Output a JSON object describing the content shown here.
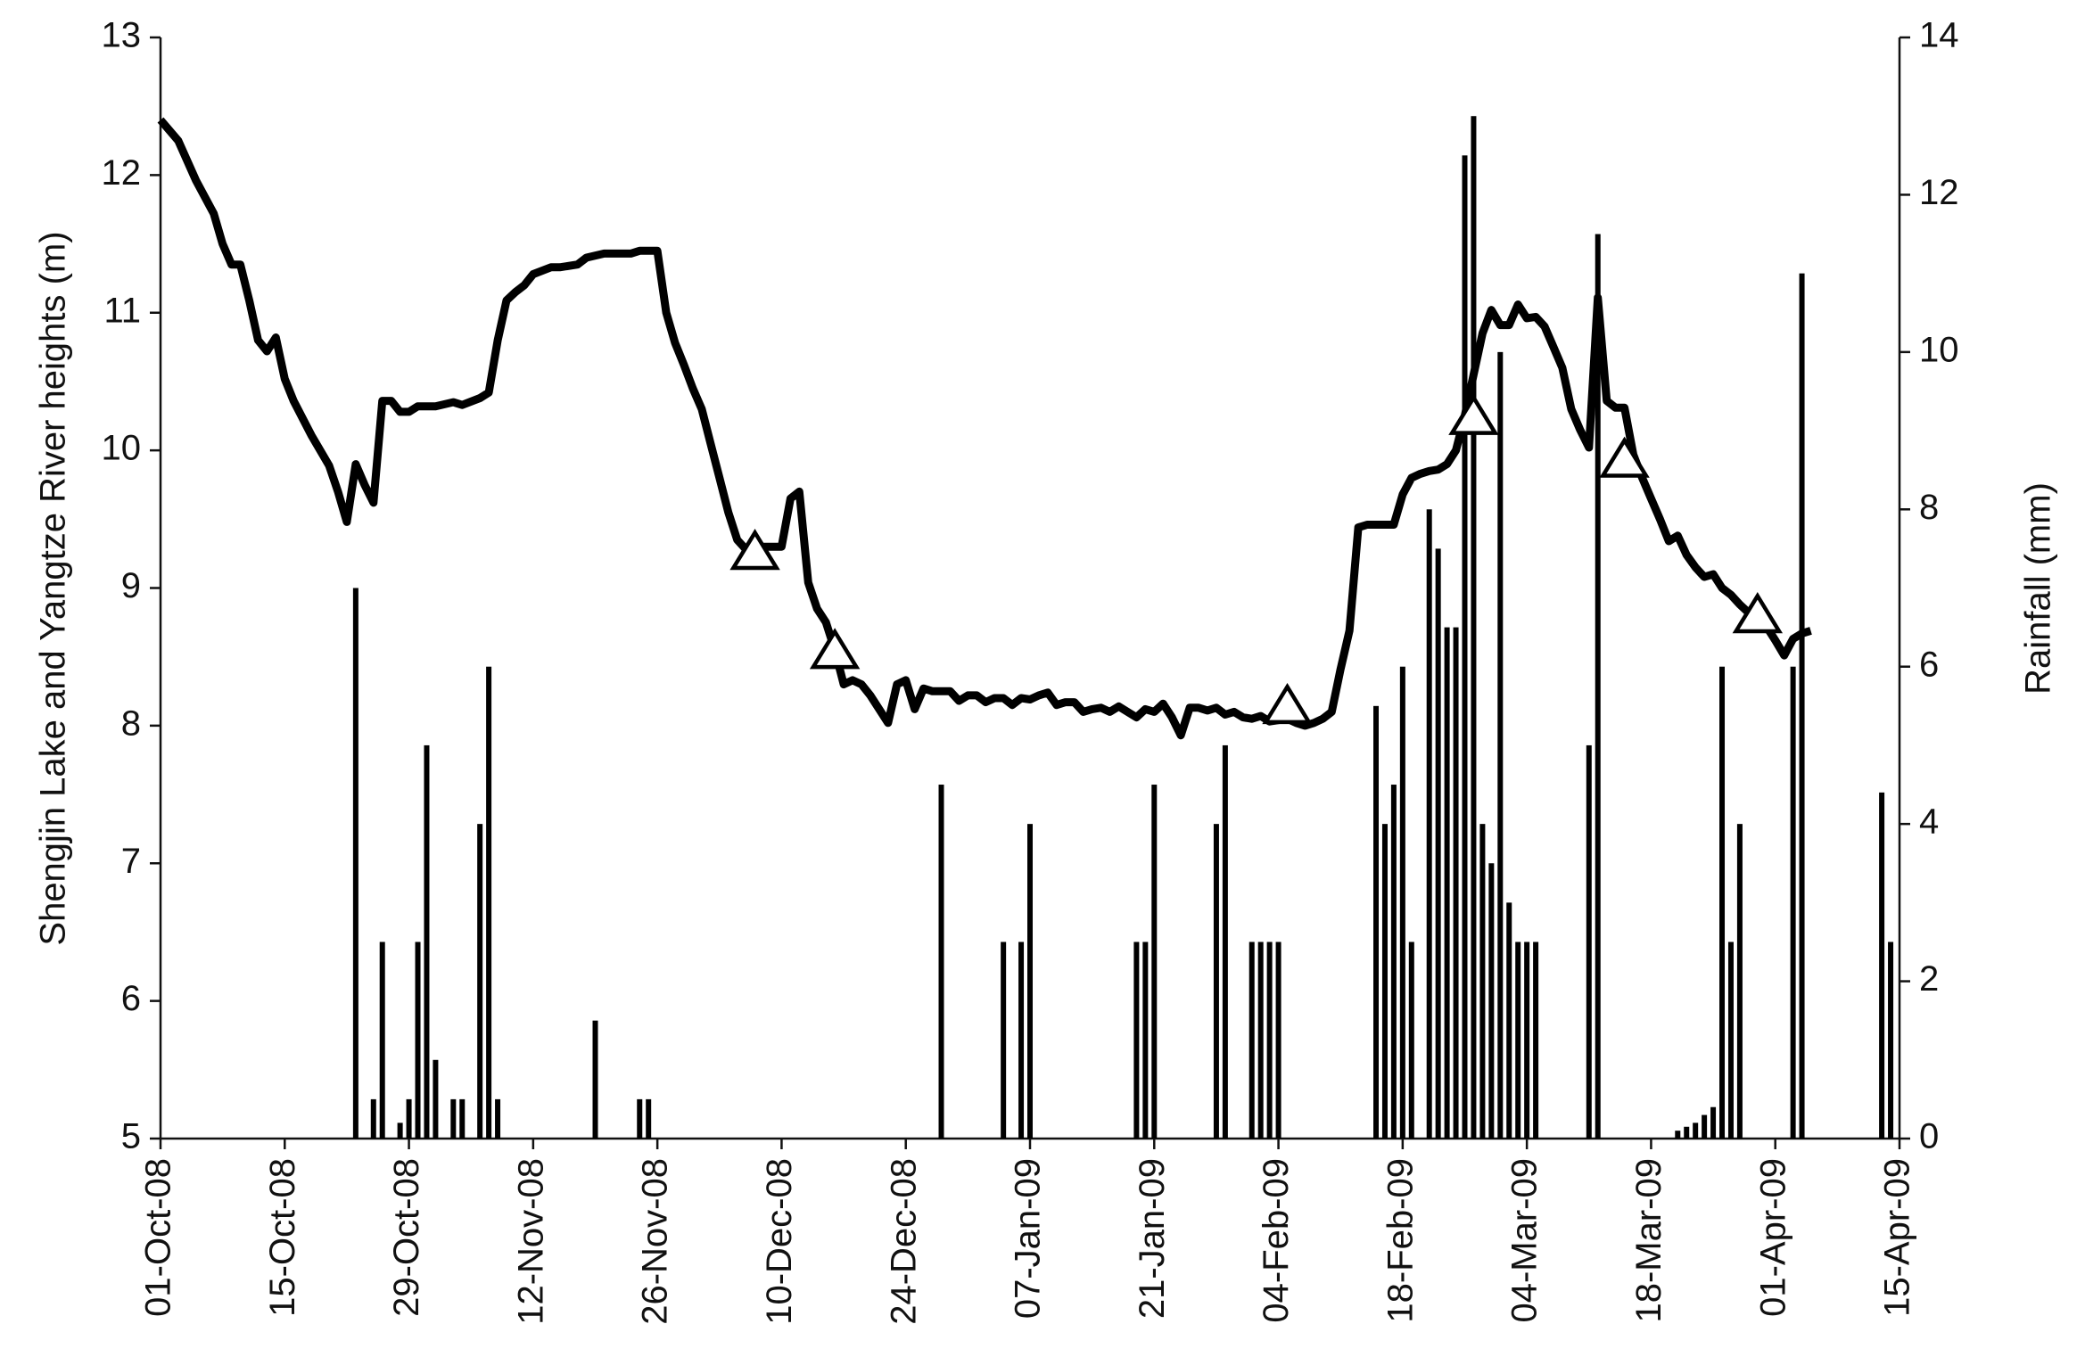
{
  "chart_data": {
    "type": "line",
    "ylabel": "Shengjin Lake and Yangtze River heights (m)",
    "y2label": "Rainfall (mm)",
    "xlim": [
      "01-Oct-08",
      "15-Apr-09"
    ],
    "xticks": [
      "01-Oct-08",
      "15-Oct-08",
      "29-Oct-08",
      "12-Nov-08",
      "26-Nov-08",
      "10-Dec-08",
      "24-Dec-08",
      "07-Jan-09",
      "21-Jan-09",
      "04-Feb-09",
      "18-Feb-09",
      "04-Mar-09",
      "18-Mar-09",
      "01-Apr-09",
      "15-Apr-09"
    ],
    "ylim": [
      5,
      13
    ],
    "yticks": [
      5,
      6,
      7,
      8,
      9,
      10,
      11,
      12,
      13
    ],
    "y2lim": [
      0,
      14
    ],
    "y2ticks": [
      0,
      2,
      4,
      6,
      8,
      10,
      12,
      14
    ],
    "series": [
      {
        "type": "bar",
        "axis": "y2",
        "color": "#000000",
        "x": [
          "23-Oct-08",
          "25-Oct-08",
          "26-Oct-08",
          "28-Oct-08",
          "29-Oct-08",
          "30-Oct-08",
          "31-Oct-08",
          "01-Nov-08",
          "03-Nov-08",
          "04-Nov-08",
          "06-Nov-08",
          "07-Nov-08",
          "08-Nov-08",
          "19-Nov-08",
          "24-Nov-08",
          "25-Nov-08",
          "28-Dec-08",
          "04-Jan-09",
          "06-Jan-09",
          "07-Jan-09",
          "19-Jan-09",
          "20-Jan-09",
          "21-Jan-09",
          "28-Jan-09",
          "29-Jan-09",
          "01-Feb-09",
          "02-Feb-09",
          "03-Feb-09",
          "04-Feb-09",
          "15-Feb-09",
          "16-Feb-09",
          "17-Feb-09",
          "18-Feb-09",
          "19-Feb-09",
          "21-Feb-09",
          "22-Feb-09",
          "23-Feb-09",
          "24-Feb-09",
          "25-Feb-09",
          "26-Feb-09",
          "27-Feb-09",
          "28-Feb-09",
          "01-Mar-09",
          "02-Mar-09",
          "03-Mar-09",
          "04-Mar-09",
          "05-Mar-09",
          "11-Mar-09",
          "12-Mar-09",
          "21-Mar-09",
          "22-Mar-09",
          "23-Mar-09",
          "24-Mar-09",
          "25-Mar-09",
          "26-Mar-09",
          "27-Mar-09",
          "28-Mar-09",
          "03-Apr-09",
          "04-Apr-09",
          "13-Apr-09",
          "14-Apr-09"
        ],
        "values": [
          7.0,
          0.5,
          2.5,
          0.2,
          0.5,
          2.5,
          5.0,
          1.0,
          0.5,
          0.5,
          4.0,
          6.0,
          0.5,
          1.5,
          0.5,
          0.5,
          4.5,
          2.5,
          2.5,
          4.0,
          2.5,
          2.5,
          4.5,
          4.0,
          5.0,
          2.5,
          2.5,
          2.5,
          2.5,
          5.5,
          4.0,
          4.5,
          6.0,
          2.5,
          8.0,
          7.5,
          6.5,
          6.5,
          12.5,
          13.0,
          4.0,
          3.5,
          10.0,
          3.0,
          2.5,
          2.5,
          2.5,
          5.0,
          11.5,
          0.1,
          0.15,
          0.2,
          0.3,
          0.4,
          6.0,
          2.5,
          4.0,
          6.0,
          11.0,
          4.4,
          2.5
        ]
      },
      {
        "type": "line",
        "color": "#000000",
        "x": [
          "01-Oct-08",
          "03-Oct-08",
          "05-Oct-08",
          "07-Oct-08",
          "08-Oct-08",
          "09-Oct-08",
          "10-Oct-08",
          "11-Oct-08",
          "12-Oct-08",
          "13-Oct-08",
          "14-Oct-08",
          "15-Oct-08",
          "16-Oct-08",
          "18-Oct-08",
          "20-Oct-08",
          "21-Oct-08",
          "22-Oct-08",
          "23-Oct-08",
          "24-Oct-08",
          "25-Oct-08",
          "26-Oct-08",
          "27-Oct-08",
          "28-Oct-08",
          "29-Oct-08",
          "30-Oct-08",
          "01-Nov-08",
          "03-Nov-08",
          "04-Nov-08",
          "06-Nov-08",
          "07-Nov-08",
          "08-Nov-08",
          "09-Nov-08",
          "10-Nov-08",
          "11-Nov-08",
          "12-Nov-08",
          "14-Nov-08",
          "15-Nov-08",
          "17-Nov-08",
          "18-Nov-08",
          "20-Nov-08",
          "23-Nov-08",
          "24-Nov-08",
          "26-Nov-08",
          "27-Nov-08",
          "28-Nov-08",
          "29-Nov-08",
          "30-Nov-08",
          "01-Dec-08",
          "02-Dec-08",
          "03-Dec-08",
          "04-Dec-08",
          "05-Dec-08",
          "06-Dec-08",
          "08-Dec-08",
          "10-Dec-08",
          "11-Dec-08",
          "12-Dec-08",
          "13-Dec-08",
          "14-Dec-08",
          "15-Dec-08",
          "16-Dec-08",
          "17-Dec-08",
          "18-Dec-08",
          "19-Dec-08",
          "20-Dec-08",
          "21-Dec-08",
          "22-Dec-08",
          "23-Dec-08",
          "24-Dec-08",
          "25-Dec-08",
          "26-Dec-08",
          "27-Dec-08",
          "29-Dec-08",
          "30-Dec-08",
          "31-Dec-08",
          "01-Jan-09",
          "02-Jan-09",
          "03-Jan-09",
          "04-Jan-09",
          "05-Jan-09",
          "06-Jan-09",
          "07-Jan-09",
          "08-Jan-09",
          "09-Jan-09",
          "10-Jan-09",
          "11-Jan-09",
          "12-Jan-09",
          "13-Jan-09",
          "14-Jan-09",
          "15-Jan-09",
          "16-Jan-09",
          "17-Jan-09",
          "18-Jan-09",
          "19-Jan-09",
          "20-Jan-09",
          "21-Jan-09",
          "22-Jan-09",
          "23-Jan-09",
          "24-Jan-09",
          "25-Jan-09",
          "26-Jan-09",
          "27-Jan-09",
          "28-Jan-09",
          "29-Jan-09",
          "30-Jan-09",
          "31-Jan-09",
          "01-Feb-09",
          "02-Feb-09",
          "03-Feb-09",
          "04-Feb-09",
          "05-Feb-09",
          "06-Feb-09",
          "07-Feb-09",
          "08-Feb-09",
          "09-Feb-09",
          "10-Feb-09",
          "11-Feb-09",
          "12-Feb-09",
          "13-Feb-09",
          "14-Feb-09",
          "16-Feb-09",
          "17-Feb-09",
          "18-Feb-09",
          "19-Feb-09",
          "20-Feb-09",
          "21-Feb-09",
          "22-Feb-09",
          "23-Feb-09",
          "24-Feb-09",
          "25-Feb-09",
          "26-Feb-09",
          "27-Feb-09",
          "28-Feb-09",
          "01-Mar-09",
          "02-Mar-09",
          "03-Mar-09",
          "04-Mar-09",
          "05-Mar-09",
          "06-Mar-09",
          "07-Mar-09",
          "08-Mar-09",
          "09-Mar-09",
          "10-Mar-09",
          "11-Mar-09",
          "12-Mar-09",
          "13-Mar-09",
          "14-Mar-09",
          "15-Mar-09",
          "16-Mar-09",
          "17-Mar-09",
          "18-Mar-09",
          "19-Mar-09",
          "20-Mar-09",
          "21-Mar-09",
          "22-Mar-09",
          "23-Mar-09",
          "24-Mar-09",
          "25-Mar-09",
          "26-Mar-09",
          "27-Mar-09",
          "28-Mar-09",
          "29-Mar-09",
          "30-Mar-09",
          "31-Mar-09",
          "01-Apr-09",
          "02-Apr-09",
          "03-Apr-09",
          "04-Apr-09",
          "05-Apr-09"
        ],
        "values": [
          12.4,
          12.25,
          11.96,
          11.72,
          11.5,
          11.35,
          11.35,
          11.09,
          10.8,
          10.72,
          10.82,
          10.52,
          10.36,
          10.11,
          9.89,
          9.7,
          9.48,
          9.9,
          9.75,
          9.62,
          10.36,
          10.36,
          10.28,
          10.28,
          10.32,
          10.32,
          10.35,
          10.33,
          10.38,
          10.42,
          10.8,
          11.09,
          11.15,
          11.2,
          11.28,
          11.33,
          11.33,
          11.35,
          11.4,
          11.43,
          11.43,
          11.45,
          11.45,
          11.0,
          10.78,
          10.62,
          10.45,
          10.3,
          10.05,
          9.8,
          9.55,
          9.35,
          9.28,
          9.3,
          9.3,
          9.65,
          9.7,
          9.04,
          8.85,
          8.75,
          8.55,
          8.3,
          8.33,
          8.3,
          8.22,
          8.12,
          8.02,
          8.3,
          8.33,
          8.12,
          8.27,
          8.25,
          8.25,
          8.18,
          8.22,
          8.22,
          8.17,
          8.2,
          8.2,
          8.15,
          8.2,
          8.19,
          8.22,
          8.24,
          8.15,
          8.17,
          8.17,
          8.1,
          8.12,
          8.13,
          8.1,
          8.14,
          8.1,
          8.06,
          8.12,
          8.1,
          8.16,
          8.06,
          7.93,
          8.13,
          8.13,
          8.11,
          8.13,
          8.08,
          8.1,
          8.06,
          8.05,
          8.07,
          8.03,
          8.04,
          8.05,
          8.02,
          8.0,
          8.02,
          8.05,
          8.1,
          8.41,
          8.69,
          9.44,
          9.46,
          9.46,
          9.46,
          9.68,
          9.8,
          9.83,
          9.85,
          9.86,
          9.9,
          10.0,
          10.25,
          10.55,
          10.85,
          11.02,
          10.91,
          10.91,
          11.06,
          10.96,
          10.97,
          10.9,
          10.75,
          10.6,
          10.3,
          10.15,
          10.02,
          11.11,
          10.36,
          10.31,
          10.31,
          9.97,
          9.8,
          9.65,
          9.5,
          9.34,
          9.38,
          9.24,
          9.15,
          9.08,
          9.1,
          9.0,
          8.95,
          8.88,
          8.82,
          8.78,
          8.72,
          8.62,
          8.51,
          8.63,
          8.67,
          8.69
        ]
      },
      {
        "type": "triangle",
        "color": "#000000",
        "x": [
          "07-Dec-08",
          "16-Dec-08",
          "05-Feb-09",
          "26-Feb-09",
          "15-Mar-09",
          "30-Mar-09"
        ],
        "values": [
          9.26,
          8.54,
          8.14,
          10.24,
          9.93,
          8.8
        ]
      }
    ]
  }
}
